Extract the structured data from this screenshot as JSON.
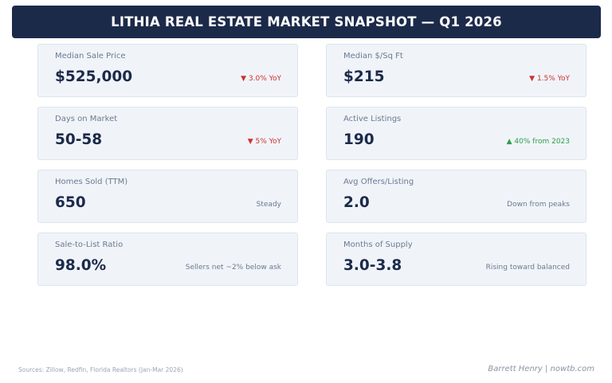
{
  "header": {
    "title": "LITHIA REAL ESTATE MARKET SNAPSHOT — Q1 2026"
  },
  "cards": [
    {
      "label": "Median Sale Price",
      "value": "$525,000",
      "note": "▼ 3.0% YoY",
      "trend": "down"
    },
    {
      "label": "Median $/Sq Ft",
      "value": "$215",
      "note": "▼ 1.5% YoY",
      "trend": "down"
    },
    {
      "label": "Days on Market",
      "value": "50-58",
      "note": "▼ 5% YoY",
      "trend": "down"
    },
    {
      "label": "Active Listings",
      "value": "190",
      "note": "▲ 40% from 2023",
      "trend": "up"
    },
    {
      "label": "Homes Sold (TTM)",
      "value": "650",
      "note": "Steady",
      "trend": "neutral"
    },
    {
      "label": "Avg Offers/Listing",
      "value": "2.0",
      "note": "Down from peaks",
      "trend": "neutral"
    },
    {
      "label": "Sale-to-List Ratio",
      "value": "98.0%",
      "note": "Sellers net ~2% below ask",
      "trend": "neutral"
    },
    {
      "label": "Months of Supply",
      "value": "3.0-3.8",
      "note": "Rising toward balanced",
      "trend": "neutral"
    }
  ],
  "colors": {
    "header_bg": "#1c2a4a",
    "card_bg": "#f0f4f9",
    "down": "#d0312d",
    "up": "#2a9d4b",
    "neutral": "#6b7a90"
  },
  "footer": {
    "sources": "Sources: Zillow, Redfin, Florida Realtors (Jan-Mar 2026)",
    "credit": "Barrett Henry | nowtb.com"
  }
}
